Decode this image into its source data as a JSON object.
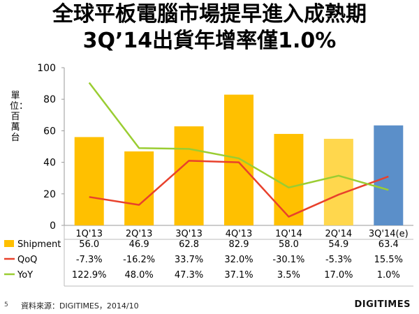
{
  "page": {
    "title_line1": "全球平板電腦市場提早進入成熟期",
    "title_line2": "3Q’14出貨年增率僅1.0%",
    "page_number": "5",
    "source": "資料來源：DIGITIMES，2014/10",
    "logo": "DIGITIMES"
  },
  "chart_data": {
    "type": "bar",
    "ylabel": "單位：百萬台",
    "ylim": [
      0,
      100
    ],
    "yticks": [
      0,
      20,
      40,
      60,
      80,
      100
    ],
    "categories": [
      "1Q'13",
      "2Q'13",
      "3Q'13",
      "4Q'13",
      "1Q'14",
      "2Q'14",
      "3Q'14(e)"
    ],
    "grid": false,
    "series": [
      {
        "name": "Shipment",
        "kind": "bar",
        "values": [
          56.0,
          46.9,
          62.8,
          82.9,
          58.0,
          54.9,
          63.4
        ],
        "table_values": [
          "56.0",
          "46.9",
          "62.8",
          "82.9",
          "58.0",
          "54.9",
          "63.4"
        ],
        "bar_colors": [
          "#FFC000",
          "#FFC000",
          "#FFC000",
          "#FFC000",
          "#FFC000",
          "#FFD74D",
          "#5B8FC9"
        ],
        "color": "#FFC000"
      },
      {
        "name": "QoQ",
        "kind": "line",
        "values": [
          18,
          13,
          41,
          40,
          5.5,
          19.5,
          31
        ],
        "table_values": [
          "-7.3%",
          "-16.2%",
          "33.7%",
          "32.0%",
          "-30.1%",
          "-5.3%",
          "15.5%"
        ],
        "color": "#E8412C"
      },
      {
        "name": "YoY",
        "kind": "line",
        "values": [
          90.5,
          49,
          48.5,
          42.5,
          24,
          31.5,
          22.5
        ],
        "table_values": [
          "122.9%",
          "48.0%",
          "47.3%",
          "37.1%",
          "3.5%",
          "17.0%",
          "1.0%"
        ],
        "color": "#9ACD32"
      }
    ]
  }
}
